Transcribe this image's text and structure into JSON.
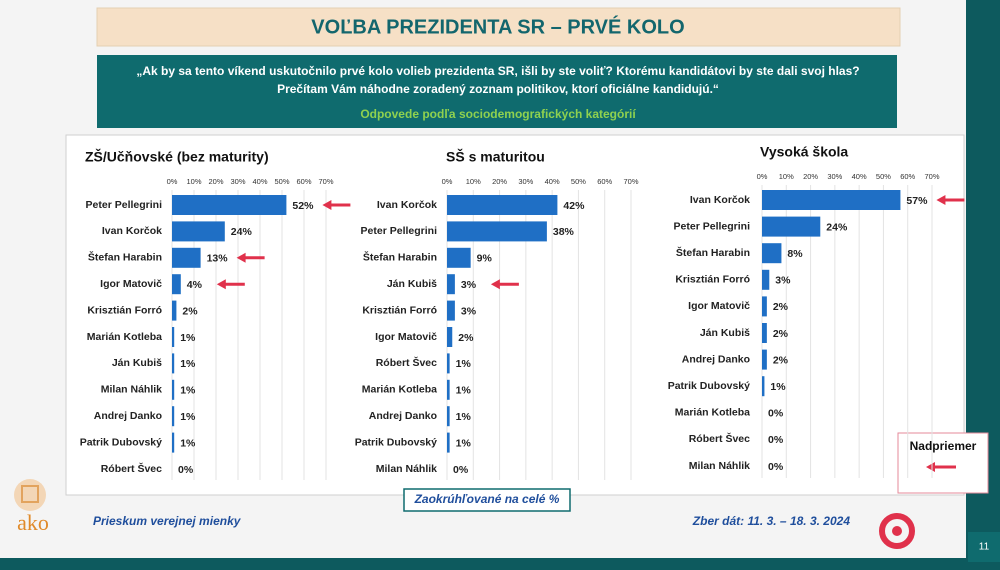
{
  "header": {
    "title": "VOĽBA PREZIDENTA SR – PRVÉ KOLO",
    "question": [
      "„Ak by sa tento víkend uskutočnilo prvé kolo volieb prezidenta SR, išli by ste voliť? Ktorému kandidátovi by ste dali svoj hlas?",
      "Prečítam Vám náhodne zoradený zoznam politikov, ktorí oficiálne kandidujú.“"
    ],
    "subtitle": "Odpovede podľa sociodemografických kategórií"
  },
  "chart_data": [
    {
      "type": "bar",
      "orientation": "horizontal",
      "title": "ZŠ/Učňovské (bez maturity)",
      "categories": [
        "Peter Pellegrini",
        "Ivan Korčok",
        "Štefan Harabin",
        "Igor Matovič",
        "Krisztián Forró",
        "Marián Kotleba",
        "Ján Kubiš",
        "Milan Náhlik",
        "Andrej Danko",
        "Patrik Dubovský",
        "Róbert Švec"
      ],
      "values": [
        52,
        24,
        13,
        4,
        2,
        1,
        1,
        1,
        1,
        1,
        0
      ],
      "value_labels": [
        "52%",
        "24%",
        "13%",
        "4%",
        "2%",
        "1%",
        "1%",
        "1%",
        "1%",
        "1%",
        "0%"
      ],
      "color": "#1f6fc5",
      "xlim": [
        0,
        70
      ],
      "xticks": [
        {
          "value": 0,
          "label": "0%"
        },
        {
          "value": 10,
          "label": "10%"
        },
        {
          "value": 20,
          "label": "20%"
        },
        {
          "value": 30,
          "label": "30%"
        },
        {
          "value": 40,
          "label": "40%"
        },
        {
          "value": 50,
          "label": "50%"
        },
        {
          "value": 60,
          "label": "60%"
        },
        {
          "value": 70,
          "label": "70%"
        }
      ],
      "grid": true,
      "highlighted": [
        0,
        2,
        3
      ],
      "highlight_color": "#e0314b"
    },
    {
      "type": "bar",
      "orientation": "horizontal",
      "title": "SŠ s maturitou",
      "categories": [
        "Ivan Korčok",
        "Peter Pellegrini",
        "Štefan Harabin",
        "Ján Kubiš",
        "Krisztián Forró",
        "Igor Matovič",
        "Róbert Švec",
        "Marián Kotleba",
        "Andrej Danko",
        "Patrik Dubovský",
        "Milan Náhlik"
      ],
      "values": [
        42,
        38,
        9,
        3,
        3,
        2,
        1,
        1,
        1,
        1,
        0
      ],
      "value_labels": [
        "42%",
        "38%",
        "9%",
        "3%",
        "3%",
        "2%",
        "1%",
        "1%",
        "1%",
        "1%",
        "0%"
      ],
      "color": "#1f6fc5",
      "xlim": [
        0,
        70
      ],
      "xticks": [
        {
          "value": 0,
          "label": "0%"
        },
        {
          "value": 10,
          "label": "10%"
        },
        {
          "value": 20,
          "label": "20%"
        },
        {
          "value": 30,
          "label": "30%"
        },
        {
          "value": 40,
          "label": "40%"
        },
        {
          "value": 50,
          "label": "50%"
        },
        {
          "value": 60,
          "label": "60%"
        },
        {
          "value": 70,
          "label": "70%"
        }
      ],
      "grid": true,
      "highlighted": [
        3
      ],
      "highlight_color": "#e0314b"
    },
    {
      "type": "bar",
      "orientation": "horizontal",
      "title": "Vysoká škola",
      "categories": [
        "Ivan Korčok",
        "Peter Pellegrini",
        "Štefan Harabin",
        "Krisztián Forró",
        "Igor Matovič",
        "Ján Kubiš",
        "Andrej Danko",
        "Patrik Dubovský",
        "Marián Kotleba",
        "Róbert Švec",
        "Milan Náhlik"
      ],
      "values": [
        57,
        24,
        8,
        3,
        2,
        2,
        2,
        1,
        0,
        0,
        0
      ],
      "value_labels": [
        "57%",
        "24%",
        "8%",
        "3%",
        "2%",
        "2%",
        "2%",
        "1%",
        "0%",
        "0%",
        "0%"
      ],
      "color": "#1f6fc5",
      "xlim": [
        0,
        70
      ],
      "xticks": [
        {
          "value": 0,
          "label": "0%"
        },
        {
          "value": 10,
          "label": "10%"
        },
        {
          "value": 20,
          "label": "20%"
        },
        {
          "value": 30,
          "label": "30%"
        },
        {
          "value": 40,
          "label": "40%"
        },
        {
          "value": 50,
          "label": "50%"
        },
        {
          "value": 60,
          "label": "60%"
        },
        {
          "value": 70,
          "label": "70%"
        }
      ],
      "grid": true,
      "highlighted": [
        0
      ],
      "highlight_color": "#e0314b"
    }
  ],
  "legend": {
    "label": "Nadpriemer"
  },
  "footer": {
    "note": "Zaokrúhľované na celé %",
    "left": "Prieskum verejnej mienky",
    "right": "Zber dát: 11. 3. – 18. 3. 2024",
    "logo": "ako",
    "page": "11"
  }
}
